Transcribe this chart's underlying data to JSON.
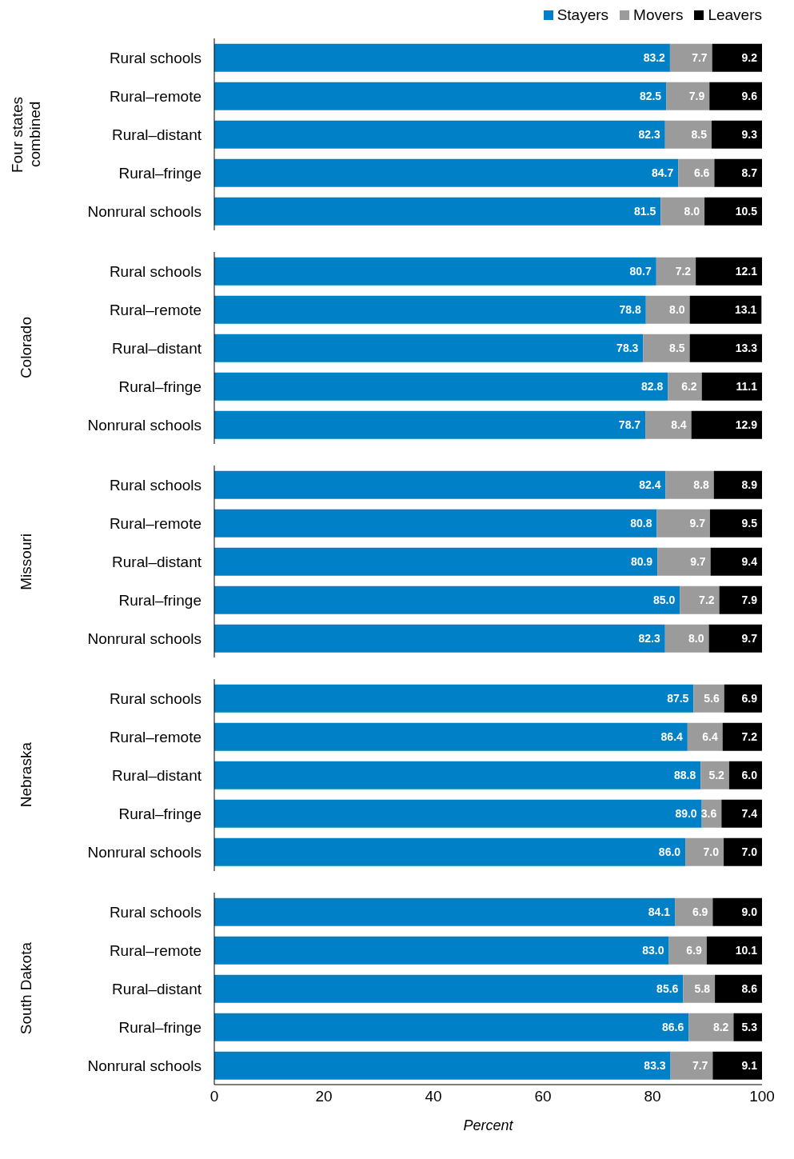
{
  "chart_data": [
    {
      "type": "bar",
      "orientation": "horizontal",
      "stacked": true,
      "ylabel": "Four states combined",
      "categories": [
        "Rural schools",
        "Rural–remote",
        "Rural–distant",
        "Rural–fringe",
        "Nonrural schools"
      ],
      "xlim": [
        0,
        100
      ],
      "xticks": [
        0,
        20,
        40,
        60,
        80,
        100
      ],
      "tick_labels": "y",
      "legend": "top right",
      "grid": false,
      "series": [
        {
          "name": "Stayers",
          "color": "#0080c6",
          "values": [
            83.2,
            82.5,
            82.3,
            84.7,
            81.5
          ],
          "value_labels": [
            "83.2",
            "82.5",
            "82.3",
            "84.7",
            "81.5"
          ]
        },
        {
          "name": "Movers",
          "color": "#9b9b9b",
          "values": [
            7.7,
            7.9,
            8.5,
            6.6,
            8.0
          ],
          "value_labels": [
            "7.7",
            "7.9",
            "8.5",
            "6.6",
            "8.0"
          ]
        },
        {
          "name": "Leavers",
          "color": "#000000",
          "values": [
            9.2,
            9.6,
            9.3,
            8.7,
            10.5
          ],
          "value_labels": [
            "9.2",
            "9.6",
            "9.3",
            "8.7",
            "10.5"
          ]
        }
      ]
    },
    {
      "type": "bar",
      "orientation": "horizontal",
      "stacked": true,
      "ylabel": "Colorado",
      "categories": [
        "Rural schools",
        "Rural–remote",
        "Rural–distant",
        "Rural–fringe",
        "Nonrural schools"
      ],
      "xlim": [
        0,
        100
      ],
      "xticks": [
        0,
        20,
        40,
        60,
        80,
        100
      ],
      "tick_labels": "y",
      "grid": false,
      "series": [
        {
          "color": "#0080c6",
          "values": [
            80.7,
            78.8,
            78.3,
            82.8,
            78.7
          ],
          "value_labels": [
            "80.7",
            "78.8",
            "78.3",
            "82.8",
            "78.7"
          ]
        },
        {
          "color": "#9b9b9b",
          "values": [
            7.2,
            8.0,
            8.5,
            6.2,
            8.4
          ],
          "value_labels": [
            "7.2",
            "8.0",
            "8.5",
            "6.2",
            "8.4"
          ]
        },
        {
          "color": "#000000",
          "values": [
            12.1,
            13.1,
            13.3,
            11.1,
            12.9
          ],
          "value_labels": [
            "12.1",
            "13.1",
            "13.3",
            "11.1",
            "12.9"
          ]
        }
      ]
    },
    {
      "type": "bar",
      "orientation": "horizontal",
      "stacked": true,
      "ylabel": "Missouri",
      "categories": [
        "Rural schools",
        "Rural–remote",
        "Rural–distant",
        "Rural–fringe",
        "Nonrural schools"
      ],
      "xlim": [
        0,
        100
      ],
      "xticks": [
        0,
        20,
        40,
        60,
        80,
        100
      ],
      "tick_labels": "y",
      "grid": false,
      "series": [
        {
          "color": "#0080c6",
          "values": [
            82.4,
            80.8,
            80.9,
            85.0,
            82.3
          ],
          "value_labels": [
            "82.4",
            "80.8",
            "80.9",
            "85.0",
            "82.3"
          ]
        },
        {
          "color": "#9b9b9b",
          "values": [
            8.8,
            9.7,
            9.7,
            7.2,
            8.0
          ],
          "value_labels": [
            "8.8",
            "9.7",
            "9.7",
            "7.2",
            "8.0"
          ]
        },
        {
          "color": "#000000",
          "values": [
            8.9,
            9.5,
            9.4,
            7.9,
            9.7
          ],
          "value_labels": [
            "8.9",
            "9.5",
            "9.4",
            "7.9",
            "9.7"
          ]
        }
      ]
    },
    {
      "type": "bar",
      "orientation": "horizontal",
      "stacked": true,
      "ylabel": "Nebraska",
      "categories": [
        "Rural schools",
        "Rural–remote",
        "Rural–distant",
        "Rural–fringe",
        "Nonrural schools"
      ],
      "xlim": [
        0,
        100
      ],
      "xticks": [
        0,
        20,
        40,
        60,
        80,
        100
      ],
      "tick_labels": "y",
      "grid": false,
      "series": [
        {
          "color": "#0080c6",
          "values": [
            87.5,
            86.4,
            88.8,
            89.0,
            86.0
          ],
          "value_labels": [
            "87.5",
            "86.4",
            "88.8",
            "89.0",
            "86.0"
          ]
        },
        {
          "color": "#9b9b9b",
          "values": [
            5.6,
            6.4,
            5.2,
            3.6,
            7.0
          ],
          "value_labels": [
            "5.6",
            "6.4",
            "5.2",
            "3.6",
            "7.0"
          ]
        },
        {
          "color": "#000000",
          "values": [
            6.9,
            7.2,
            6.0,
            7.4,
            7.0
          ],
          "value_labels": [
            "6.9",
            "7.2",
            "6.0",
            "7.4",
            "7.0"
          ]
        }
      ]
    },
    {
      "type": "bar",
      "orientation": "horizontal",
      "stacked": true,
      "ylabel": "South Dakota",
      "xlabel": "Percent",
      "categories": [
        "Rural schools",
        "Rural–remote",
        "Rural–distant",
        "Rural–fringe",
        "Nonrural schools"
      ],
      "xlim": [
        0,
        100
      ],
      "xticks": [
        0,
        20,
        40,
        60,
        80,
        100
      ],
      "grid": false,
      "series": [
        {
          "color": "#0080c6",
          "values": [
            84.1,
            83.0,
            85.6,
            86.6,
            83.3
          ],
          "value_labels": [
            "84.1",
            "83.0",
            "85.6",
            "86.6",
            "83.3"
          ]
        },
        {
          "color": "#9b9b9b",
          "values": [
            6.9,
            6.9,
            5.8,
            8.2,
            7.7
          ],
          "value_labels": [
            "6.9",
            "6.9",
            "5.8",
            "8.2",
            "7.7"
          ]
        },
        {
          "color": "#000000",
          "values": [
            9.0,
            10.1,
            8.6,
            5.3,
            9.1
          ],
          "value_labels": [
            "9.0",
            "10.1",
            "8.6",
            "5.3",
            "9.1"
          ]
        }
      ]
    }
  ]
}
